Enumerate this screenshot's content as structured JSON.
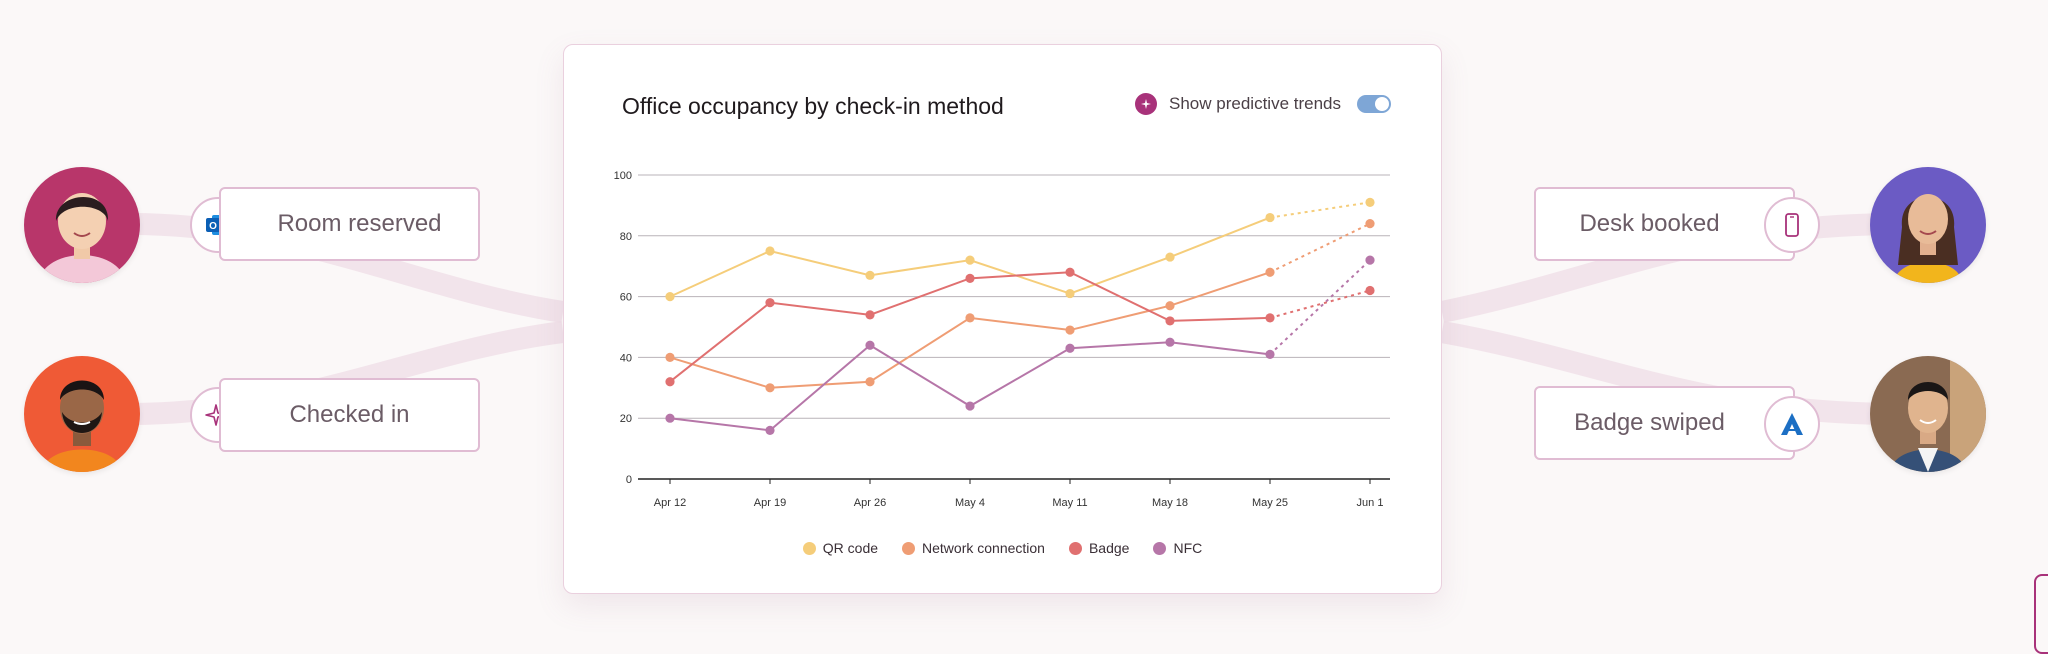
{
  "chart_card": {
    "title": "Office occupancy by check-in method",
    "toggle_label": "Show predictive trends",
    "toggle_on": true
  },
  "left_events": [
    {
      "label": "Room reserved",
      "icon": "outlook-icon"
    },
    {
      "label": "Checked in",
      "icon": "sparkle-icon"
    }
  ],
  "right_events": [
    {
      "label": "Desk booked",
      "icon": "phone-icon"
    },
    {
      "label": "Badge swiped",
      "icon": "arrow-a-icon"
    }
  ],
  "colors": {
    "qr": "#f5cd7a",
    "network": "#ef9d74",
    "badge": "#e07070",
    "nfc": "#b676a8",
    "accent": "#a8327a",
    "pill_border": "#e0bcd3"
  },
  "chart_data": {
    "type": "line",
    "title": "Office occupancy by check-in method",
    "x": [
      "Apr 12",
      "Apr 19",
      "Apr 26",
      "May 4",
      "May 11",
      "May 18",
      "May 25",
      "Jun 1"
    ],
    "ylim": [
      0,
      100
    ],
    "yticks": [
      0,
      20,
      40,
      60,
      80,
      100
    ],
    "grid": true,
    "legend_position": "bottom",
    "predicted_from_index": 6,
    "series": [
      {
        "name": "QR code",
        "values": [
          60,
          75,
          67,
          72,
          61,
          73,
          86,
          91
        ]
      },
      {
        "name": "Network connection",
        "values": [
          40,
          30,
          32,
          53,
          49,
          57,
          68,
          84
        ]
      },
      {
        "name": "Badge",
        "values": [
          32,
          58,
          54,
          66,
          68,
          52,
          53,
          62
        ]
      },
      {
        "name": "NFC",
        "values": [
          20,
          16,
          44,
          24,
          43,
          45,
          41,
          72
        ]
      }
    ]
  }
}
